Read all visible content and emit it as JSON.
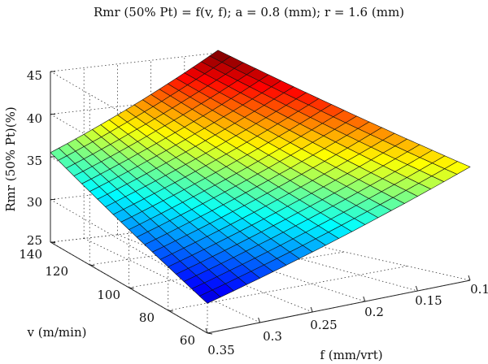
{
  "chart_data": {
    "type": "surface3d",
    "title": "Rmr (50% Pt) = f(v, f); a = 0.8 (mm); r = 1.6 (mm)",
    "zlabel": "Rmr (50% Pt)(%)",
    "ylabel": "v (m/min)",
    "xlabel": "f (mm/vrt)",
    "z_ticks": [
      "25",
      "30",
      "35",
      "40",
      "45"
    ],
    "v_ticks": [
      "60",
      "80",
      "100",
      "120",
      "140"
    ],
    "f_ticks": [
      "0.35",
      "0.3",
      "0.25",
      "0.2",
      "0.15",
      "0.1"
    ],
    "zlim": [
      25,
      45
    ],
    "vlim": [
      60,
      140
    ],
    "flim": [
      0.1,
      0.35
    ],
    "grid": true,
    "colormap": "jet",
    "corner_values": [
      {
        "v": 140,
        "f": 0.35,
        "z": 35.5
      },
      {
        "v": 140,
        "f": 0.1,
        "z": 44.5
      },
      {
        "v": 60,
        "f": 0.35,
        "z": 28.5
      },
      {
        "v": 60,
        "f": 0.1,
        "z": 37.5
      }
    ],
    "mesh": {
      "v_lines": 20,
      "f_lines": 20
    }
  }
}
